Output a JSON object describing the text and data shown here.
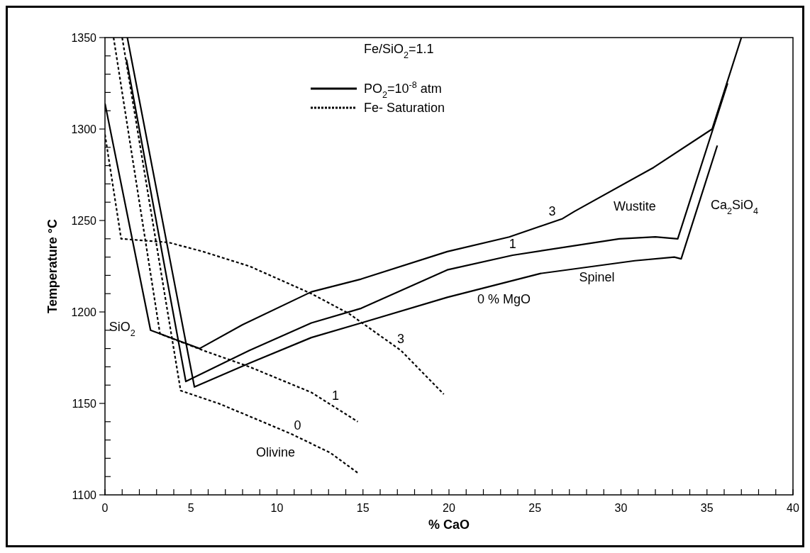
{
  "chart_data": {
    "type": "line",
    "xlabel": "% CaO",
    "ylabel": "Temperature °C",
    "xlim": [
      0,
      40
    ],
    "ylim": [
      1100,
      1350
    ],
    "xticks": [
      0,
      {
        "value": 1,
        "label": null
      },
      {
        "value": 2,
        "label": null
      },
      {
        "value": 3,
        "label": null
      },
      {
        "value": 4,
        "label": null
      },
      5,
      {
        "value": 6,
        "label": null
      },
      {
        "value": 7,
        "label": null
      },
      {
        "value": 8,
        "label": null
      },
      {
        "value": 9,
        "label": null
      },
      10,
      {
        "value": 11,
        "label": null
      },
      {
        "value": 12,
        "label": null
      },
      {
        "value": 13,
        "label": null
      },
      {
        "value": 14,
        "label": null
      },
      15,
      {
        "value": 16,
        "label": null
      },
      {
        "value": 17,
        "label": null
      },
      {
        "value": 18,
        "label": null
      },
      {
        "value": 19,
        "label": null
      },
      20,
      {
        "value": 21,
        "label": null
      },
      {
        "value": 22,
        "label": null
      },
      {
        "value": 23,
        "label": null
      },
      {
        "value": 24,
        "label": null
      },
      25,
      {
        "value": 26,
        "label": null
      },
      {
        "value": 27,
        "label": null
      },
      {
        "value": 28,
        "label": null
      },
      {
        "value": 29,
        "label": null
      },
      30,
      {
        "value": 31,
        "label": null
      },
      {
        "value": 32,
        "label": null
      },
      {
        "value": 33,
        "label": null
      },
      {
        "value": 34,
        "label": null
      },
      35,
      {
        "value": 36,
        "label": null
      },
      {
        "value": 37,
        "label": null
      },
      {
        "value": 38,
        "label": null
      },
      {
        "value": 39,
        "label": null
      },
      40
    ],
    "yticks": [
      1100,
      {
        "value": 1110,
        "label": null
      },
      {
        "value": 1120,
        "label": null
      },
      {
        "value": 1130,
        "label": null
      },
      {
        "value": 1140,
        "label": null
      },
      1150,
      {
        "value": 1160,
        "label": null
      },
      {
        "value": 1170,
        "label": null
      },
      {
        "value": 1180,
        "label": null
      },
      {
        "value": 1190,
        "label": null
      },
      1200,
      {
        "value": 1210,
        "label": null
      },
      {
        "value": 1220,
        "label": null
      },
      {
        "value": 1230,
        "label": null
      },
      {
        "value": 1240,
        "label": null
      },
      1250,
      {
        "value": 1260,
        "label": null
      },
      {
        "value": 1270,
        "label": null
      },
      {
        "value": 1280,
        "label": null
      },
      {
        "value": 1290,
        "label": null
      },
      1300,
      {
        "value": 1310,
        "label": null
      },
      {
        "value": 1320,
        "label": null
      },
      {
        "value": 1330,
        "label": null
      },
      {
        "value": 1340,
        "label": null
      },
      1350
    ],
    "grid": false,
    "legend": "top left",
    "marker": "none",
    "series": [
      {
        "name": "PO$_{2}$=10$^{-8}$ atm",
        "color": "#000000",
        "line_style": "solid",
        "x": [
          0,
          2.65,
          5.5,
          8,
          12,
          14.9,
          19.9,
          23.5,
          26.6,
          27.3,
          31.9,
          35.3,
          37
        ],
        "values": [
          1314,
          1190,
          1180,
          1193,
          1211,
          1218,
          1233,
          1241,
          1251,
          1255,
          1279,
          1300,
          1350
        ]
      },
      {
        "color": "#000000",
        "line_style": "solid",
        "x": [
          1.25,
          4.7,
          8.4,
          12,
          14.9,
          19.9,
          23.7,
          29.9,
          32,
          33.3,
          36.2
        ],
        "values": [
          1338,
          1162,
          1179,
          1194,
          1202,
          1223,
          1231,
          1240,
          1241,
          1240,
          1325
        ]
      },
      {
        "color": "#000000",
        "line_style": "solid",
        "x": [
          1.3,
          5.2,
          8.4,
          12,
          14.9,
          19.9,
          25.3,
          30.8,
          33.1,
          33.5,
          35.6
        ],
        "values": [
          1350,
          1159,
          1172,
          1186,
          1194,
          1208,
          1221,
          1228,
          1230,
          1229,
          1291
        ]
      },
      {
        "name": "Fe- Saturation",
        "color": "#000000",
        "line_style": "dotted",
        "x": [
          0,
          0.94,
          3.7,
          5.7,
          8.4,
          12,
          14.2,
          17.2,
          19.7
        ],
        "values": [
          1297,
          1240,
          1238,
          1233,
          1225,
          1210,
          1199,
          1179,
          1155
        ]
      },
      {
        "color": "#000000",
        "line_style": "dotted",
        "x": [
          0.5,
          3.2,
          5.7,
          8.4,
          12,
          14.7
        ],
        "values": [
          1350,
          1188,
          1179,
          1170,
          1156,
          1140
        ]
      },
      {
        "color": "#000000",
        "line_style": "dotted",
        "x": [
          1,
          4.4,
          6.6,
          8.9,
          10.9,
          13.1,
          14.7
        ],
        "values": [
          1350,
          1157,
          1150,
          1141,
          1133,
          1123,
          1112
        ]
      }
    ],
    "annotations": [
      "Fe/SiO$_{2}$=1.1",
      "Wustite",
      "Spinel",
      "0 % MgO",
      "Ca$_{2}$SiO$_{4}$",
      "SiO$_{2}$",
      "Olivine",
      {
        "text": "3",
        "x": 26,
        "y": 1249
      },
      {
        "text": "1",
        "x": 23.7,
        "y": 1231
      },
      {
        "text": "3",
        "x": 17.2,
        "y": 1179
      },
      {
        "text": "1",
        "x": 13.4,
        "y": 1148
      },
      {
        "text": "0",
        "x": 11.2,
        "y": 1132
      }
    ]
  }
}
